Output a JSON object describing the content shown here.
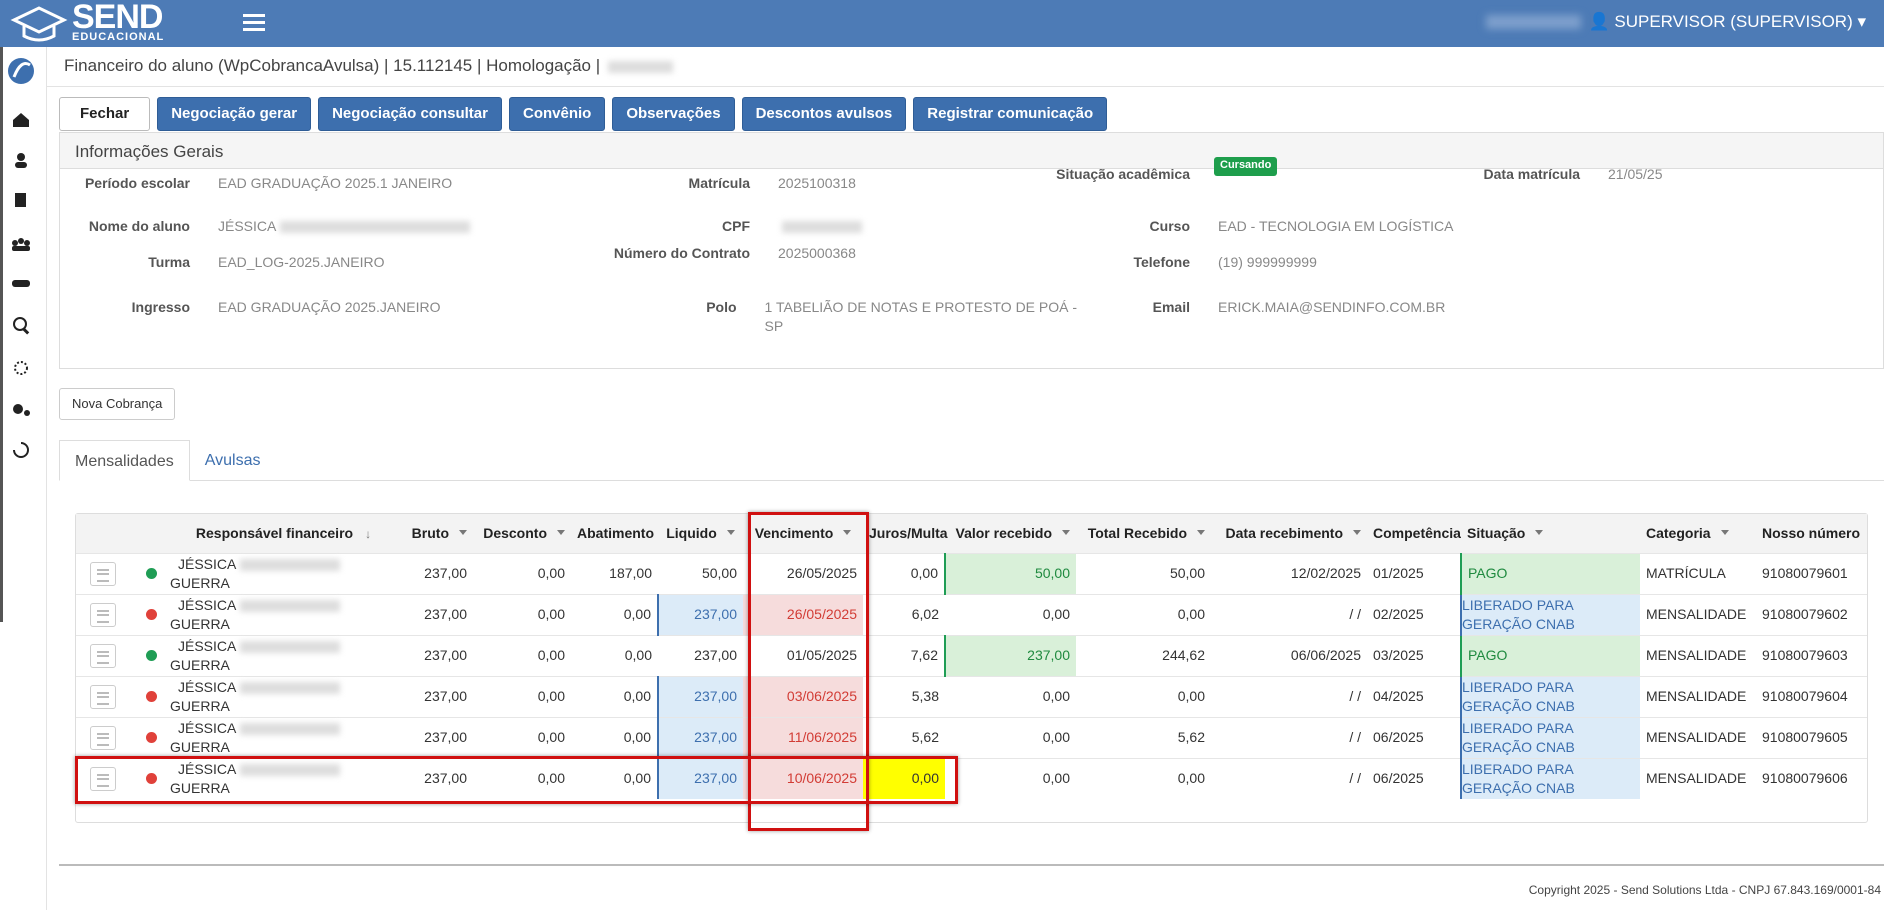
{
  "header": {
    "brand": "SEND",
    "brand_sub": "EDUCACIONAL",
    "user": "SUPERVISOR (SUPERVISOR)"
  },
  "breadcrumb": "Financeiro do aluno (WpCobrancaAvulsa) | 15.112145 | Homologação |",
  "buttons": [
    "Fechar",
    "Negociação gerar",
    "Negociação consultar",
    "Convênio",
    "Observações",
    "Descontos avulsos",
    "Registrar comunicação"
  ],
  "info": {
    "title": "Informações Gerais",
    "columns": [
      [
        {
          "label": "Período escolar",
          "value": "EAD GRADUAÇÃO 2025.1 JANEIRO"
        },
        {
          "label": "Nome do aluno",
          "value": "JÉSSICA"
        },
        {
          "label": "Turma",
          "value": "EAD_LOG-2025.JANEIRO"
        },
        {
          "label": "Ingresso",
          "value": "EAD GRADUAÇÃO 2025.JANEIRO"
        }
      ],
      [
        {
          "label": "Matrícula",
          "value": "2025100318"
        },
        {
          "label": "CPF"
        },
        {
          "label": "Número do Contrato",
          "value": "2025000368"
        },
        {
          "label": "Polo",
          "value": "1 TABELIÃO DE NOTAS E PROTESTO DE POÁ - SP"
        }
      ],
      [
        {
          "label": "Situação acadêmica",
          "badge": "Cursando"
        },
        {
          "label": "Curso",
          "value": "EAD - TECNOLOGIA EM LOGÍSTICA"
        },
        {
          "label": "Telefone",
          "value": "(19) 999999999"
        },
        {
          "label": "Email",
          "value": "ERICK.MAIA@SENDINFO.COM.BR"
        }
      ],
      [
        {
          "label": "Data matrícula",
          "value": "21/05/25"
        }
      ]
    ]
  },
  "new_charge": "Nova Cobrança",
  "tabs": [
    "Mensalidades",
    "Avulsas"
  ],
  "table": {
    "colors": {
      "paid": "#1f9d55",
      "open": "#e0413a"
    },
    "columns": [
      {
        "label": "Responsável financeiro",
        "sort": "down"
      },
      {
        "label": "Bruto",
        "sort": "caret"
      },
      {
        "label": "Desconto",
        "sort": "caret"
      },
      {
        "label": "Abatimento"
      },
      {
        "label": "Liquido",
        "sort": "caret"
      },
      {
        "label": "Vencimento",
        "sort": "caret"
      },
      {
        "label": "Juros/Multa"
      },
      {
        "label": "Valor recebido",
        "sort": "caret"
      },
      {
        "label": "Total Recebido",
        "sort": "caret"
      },
      {
        "label": "Data recebimento",
        "sort": "caret"
      },
      {
        "label": "Competência"
      },
      {
        "label": "Situação",
        "sort": "caret"
      },
      {
        "label": "Categoria",
        "sort": "caret"
      },
      {
        "label": "Nosso número"
      }
    ],
    "rows": [
      {
        "dot": "paid",
        "name": [
          "JÉSSICA",
          "GUERRA"
        ],
        "cells": [
          "237,00",
          "0,00",
          "187,00",
          "50,00",
          "26/05/2025",
          "0,00",
          "50,00",
          "50,00",
          "12/02/2025",
          "01/2025",
          "PAGO",
          "MATRÍCULA",
          "91080079601"
        ]
      },
      {
        "dot": "open",
        "name": [
          "JÉSSICA",
          "GUERRA"
        ],
        "cells": [
          "237,00",
          "0,00",
          "0,00",
          "237,00",
          "26/05/2025",
          "6,02",
          "0,00",
          "0,00",
          "/ /",
          "02/2025",
          "LIBERADO PARA GERAÇÃO CNAB",
          "MENSALIDADE",
          "91080079602"
        ]
      },
      {
        "dot": "paid",
        "name": [
          "JÉSSICA",
          "GUERRA"
        ],
        "cells": [
          "237,00",
          "0,00",
          "0,00",
          "237,00",
          "01/05/2025",
          "7,62",
          "237,00",
          "244,62",
          "06/06/2025",
          "03/2025",
          "PAGO",
          "MENSALIDADE",
          "91080079603"
        ]
      },
      {
        "dot": "open",
        "name": [
          "JÉSSICA",
          "GUERRA"
        ],
        "cells": [
          "237,00",
          "0,00",
          "0,00",
          "237,00",
          "03/06/2025",
          "5,38",
          "0,00",
          "0,00",
          "/ /",
          "04/2025",
          "LIBERADO PARA GERAÇÃO CNAB",
          "MENSALIDADE",
          "91080079604"
        ]
      },
      {
        "dot": "open",
        "name": [
          "JÉSSICA",
          "GUERRA"
        ],
        "cells": [
          "237,00",
          "0,00",
          "0,00",
          "237,00",
          "11/06/2025",
          "5,62",
          "0,00",
          "5,62",
          "/ /",
          "06/2025",
          "LIBERADO PARA GERAÇÃO CNAB",
          "MENSALIDADE",
          "91080079605"
        ]
      },
      {
        "dot": "open",
        "name": [
          "JÉSSICA",
          "GUERRA"
        ],
        "cells": [
          "237,00",
          "0,00",
          "0,00",
          "237,00",
          "10/06/2025",
          "0,00",
          "0,00",
          "0,00",
          "/ /",
          "06/2025",
          "LIBERADO PARA GERAÇÃO CNAB",
          "MENSALIDADE",
          "91080079606"
        ]
      }
    ]
  },
  "footer": "Copyright 2025 - Send Solutions Ltda - CNPJ 67.843.169/0001-84"
}
